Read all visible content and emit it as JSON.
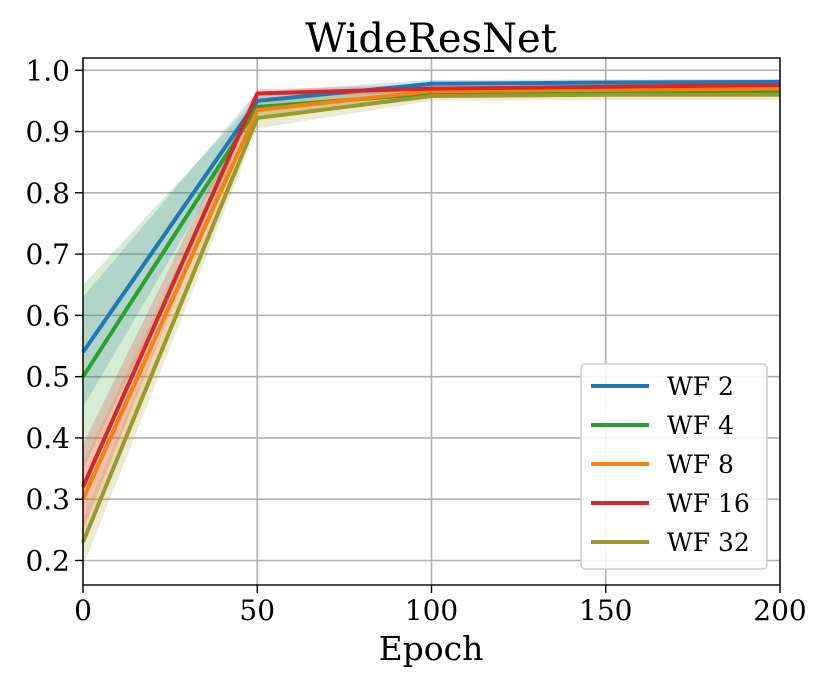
{
  "chart_data": {
    "type": "line",
    "title": "WideResNet",
    "xlabel": "Epoch",
    "ylabel": "",
    "xlim": [
      0,
      200
    ],
    "ylim": [
      0.16,
      1.02
    ],
    "x_ticks": [
      "0",
      "50",
      "100",
      "150",
      "200"
    ],
    "y_ticks": [
      "0.2",
      "0.3",
      "0.4",
      "0.5",
      "0.6",
      "0.7",
      "0.8",
      "0.9",
      "1.0"
    ],
    "grid": true,
    "legend_position": "lower-right",
    "x": [
      0,
      50,
      100,
      150,
      200
    ],
    "series": [
      {
        "name": "WF 2",
        "color": "#1f77b4",
        "values": [
          0.54,
          0.95,
          0.978,
          0.98,
          0.981
        ],
        "lower": [
          0.45,
          0.935,
          0.972,
          0.975,
          0.976
        ],
        "upper": [
          0.63,
          0.965,
          0.984,
          0.985,
          0.986
        ]
      },
      {
        "name": "WF 4",
        "color": "#2ca02c",
        "values": [
          0.5,
          0.94,
          0.962,
          0.964,
          0.965
        ],
        "lower": [
          0.35,
          0.925,
          0.955,
          0.958,
          0.958
        ],
        "upper": [
          0.65,
          0.955,
          0.97,
          0.971,
          0.972
        ]
      },
      {
        "name": "WF 8",
        "color": "#ff7f0e",
        "values": [
          0.3,
          0.935,
          0.966,
          0.968,
          0.97
        ],
        "lower": [
          0.24,
          0.92,
          0.96,
          0.962,
          0.964
        ],
        "upper": [
          0.36,
          0.95,
          0.972,
          0.974,
          0.976
        ]
      },
      {
        "name": "WF 16",
        "color": "#d62728",
        "values": [
          0.32,
          0.962,
          0.97,
          0.973,
          0.976
        ],
        "lower": [
          0.25,
          0.955,
          0.964,
          0.967,
          0.97
        ],
        "upper": [
          0.39,
          0.969,
          0.976,
          0.979,
          0.982
        ]
      },
      {
        "name": "WF 32",
        "color": "#9a9a2a",
        "values": [
          0.23,
          0.922,
          0.958,
          0.96,
          0.96
        ],
        "lower": [
          0.19,
          0.905,
          0.95,
          0.952,
          0.952
        ],
        "upper": [
          0.27,
          0.939,
          0.966,
          0.968,
          0.968
        ]
      }
    ]
  }
}
